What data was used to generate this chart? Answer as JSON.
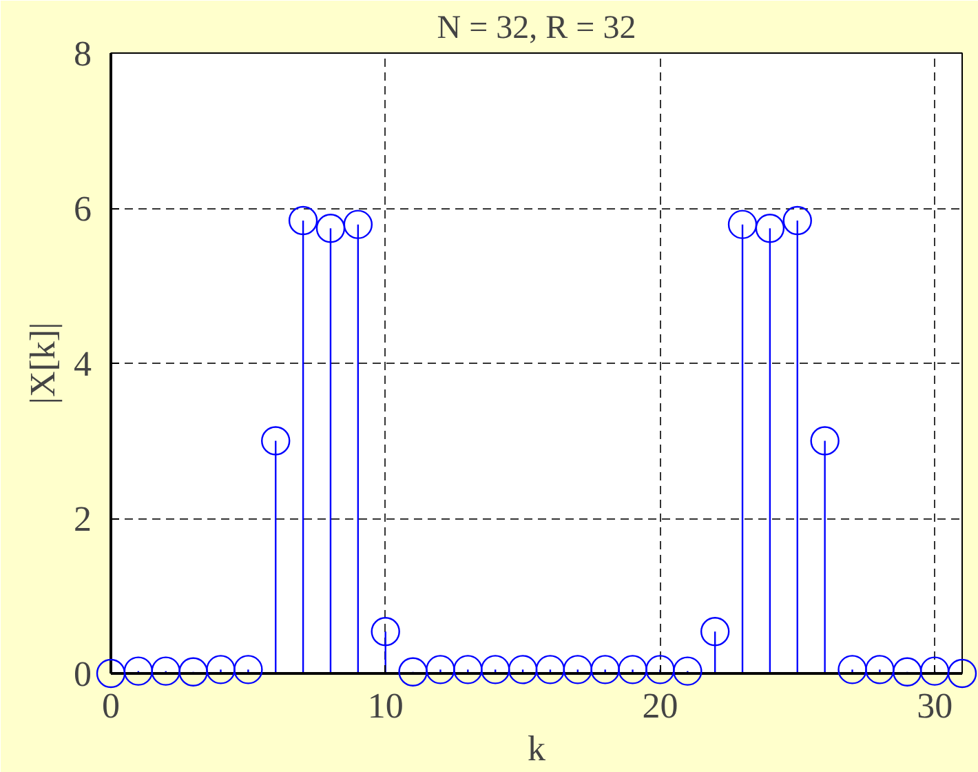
{
  "chart_data": {
    "type": "lollipop",
    "title": "N = 32, R = 32",
    "xlabel": "k",
    "ylabel": "|X[k]|",
    "x": [
      0,
      1,
      2,
      3,
      4,
      5,
      6,
      7,
      8,
      9,
      10,
      11,
      12,
      13,
      14,
      15,
      16,
      17,
      18,
      19,
      20,
      21,
      22,
      23,
      24,
      25,
      26,
      27,
      28,
      29,
      30,
      31
    ],
    "series": [
      {
        "color": "#0000ff",
        "values": [
          0.0,
          0.03,
          0.03,
          0.02,
          0.05,
          0.05,
          3.0,
          5.84,
          5.74,
          5.79,
          0.54,
          0.02,
          0.05,
          0.05,
          0.05,
          0.05,
          0.05,
          0.05,
          0.05,
          0.05,
          0.05,
          0.03,
          0.54,
          5.79,
          5.74,
          5.84,
          3.0,
          0.05,
          0.05,
          0.02,
          0.03,
          0.0
        ]
      }
    ],
    "xlim": [
      0,
      31
    ],
    "ylim": [
      0,
      8
    ],
    "xticks": [
      0,
      10,
      20,
      30
    ],
    "yticks": [
      0,
      2,
      4,
      6,
      8
    ],
    "grid": true,
    "marker": "circle"
  }
}
